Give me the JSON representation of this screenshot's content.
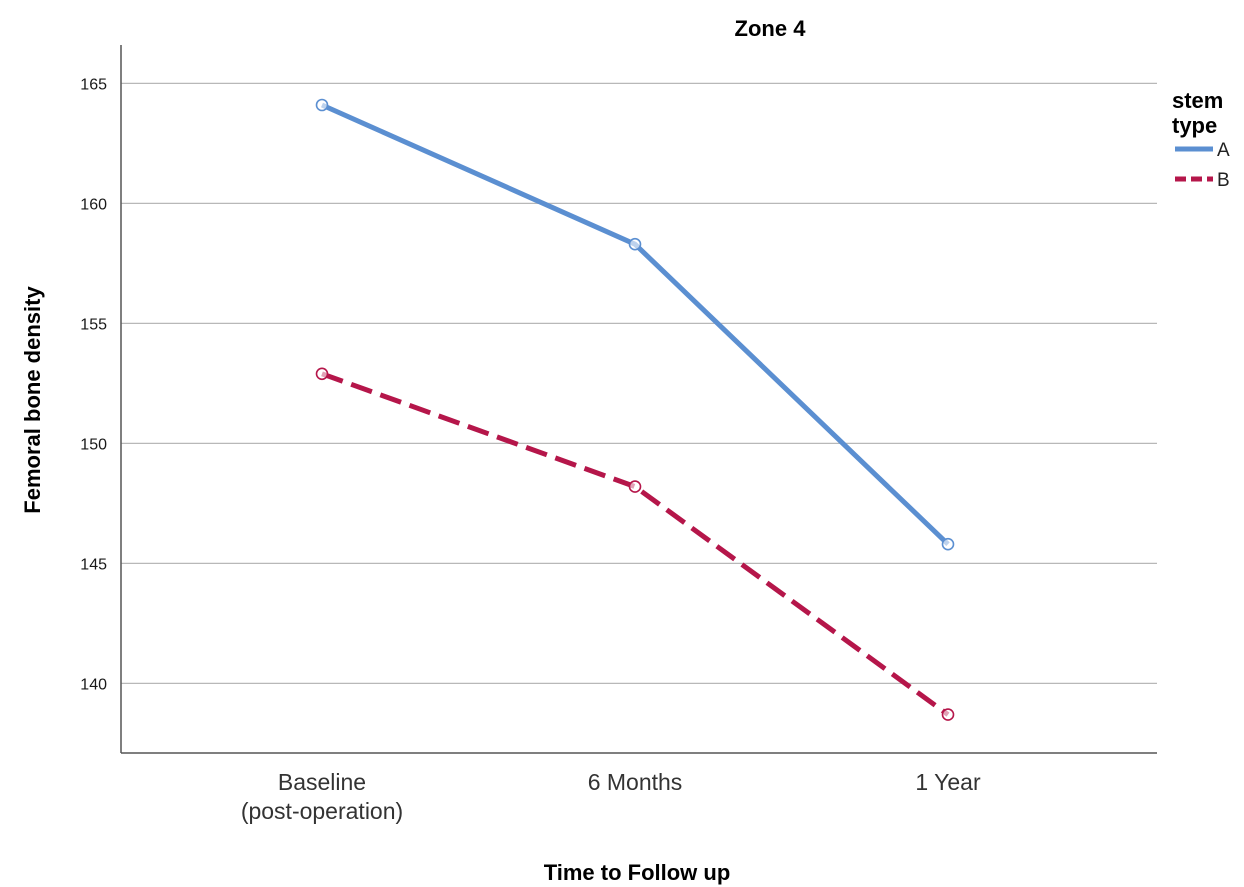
{
  "chart_data": {
    "type": "line",
    "title": "Zone 4",
    "xlabel": "Time to Follow up",
    "ylabel": "Femoral bone density",
    "categories": [
      [
        "Baseline",
        "(post-operation)"
      ],
      [
        "6 Months"
      ],
      [
        "1 Year"
      ]
    ],
    "yticks": [
      140,
      145,
      150,
      155,
      160,
      165
    ],
    "ylim": [
      137.1,
      166.6
    ],
    "grid": true,
    "legend": {
      "title": [
        "stem",
        "type"
      ],
      "placement": "right-top"
    },
    "series": [
      {
        "name": "A",
        "values": [
          164.1,
          158.3,
          145.8
        ],
        "color": "#5b8fd1",
        "dash": "solid"
      },
      {
        "name": "B",
        "values": [
          152.9,
          148.2,
          138.7
        ],
        "color": "#b5164a",
        "dash": "dashed"
      }
    ]
  }
}
